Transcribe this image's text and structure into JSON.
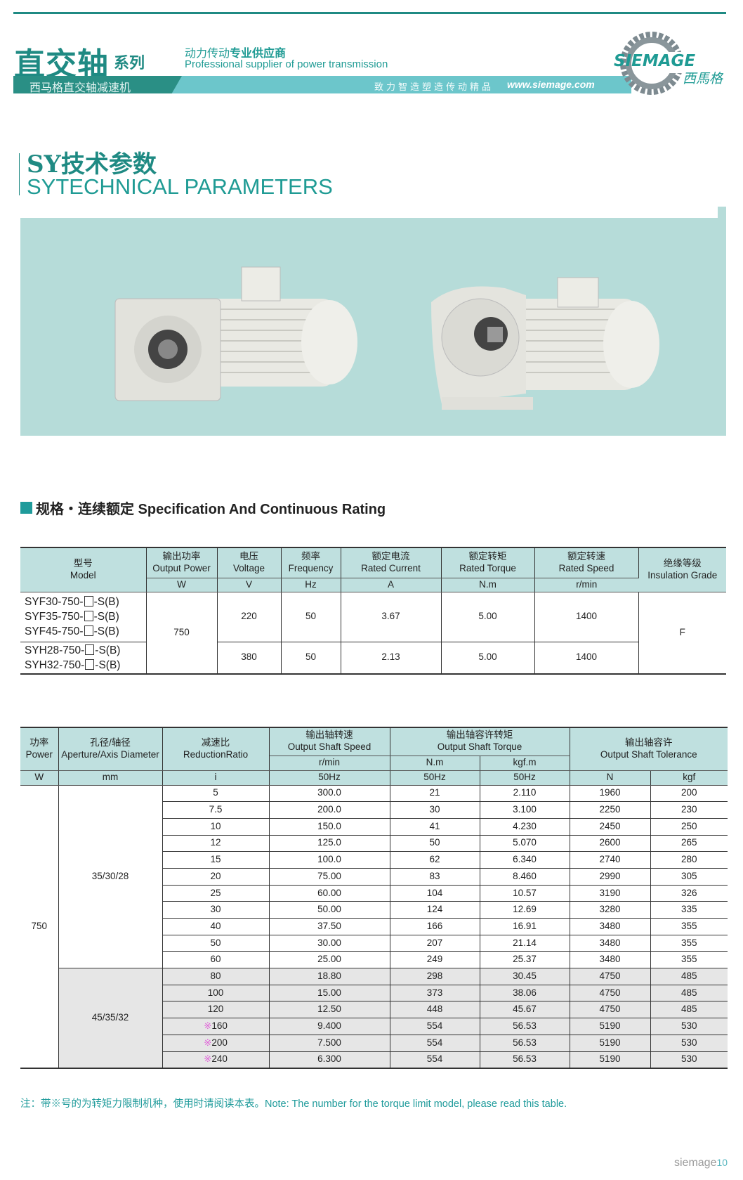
{
  "header": {
    "title": "直交轴",
    "series": "系列",
    "slogan_cn_light": "动力传动",
    "slogan_cn_bold": "专业供应商",
    "slogan_en": "Professional supplier of power transmission",
    "band_left": "西马格直交轴减速机",
    "motto": "致力智造塑造传动精品",
    "url": "www.siemage.com",
    "logo_text": "SIEMAGE",
    "logo_cn": "西馬格"
  },
  "section": {
    "title_cn": "SY技术参数",
    "title_en": "SYTECHNICAL PARAMETERS"
  },
  "spec_heading": "规格・连续额定 Specification And Continuous Rating",
  "table1": {
    "headers": [
      {
        "cn": "型号",
        "en": "Model"
      },
      {
        "cn": "输出功率",
        "en": "Output Power",
        "unit": "W"
      },
      {
        "cn": "电压",
        "en": "Voltage",
        "unit": "V"
      },
      {
        "cn": "频率",
        "en": "Frequency",
        "unit": "Hz"
      },
      {
        "cn": "额定电流",
        "en": "Rated Current",
        "unit": "A"
      },
      {
        "cn": "额定转矩",
        "en": "Rated Torque",
        "unit": "N.m"
      },
      {
        "cn": "额定转速",
        "en": "Rated Speed",
        "unit": "r/min"
      },
      {
        "cn": "绝缘等级",
        "en": "Insulation Grade"
      }
    ],
    "power": "750",
    "insulation": "F",
    "groups": [
      {
        "models": [
          {
            "pre": "SYF30-750-",
            "post": "-S(B)"
          },
          {
            "pre": "SYF35-750-",
            "post": "-S(B)"
          },
          {
            "pre": "SYF45-750-",
            "post": "-S(B)"
          }
        ],
        "voltage": "220",
        "frequency": "50",
        "current": "3.67",
        "torque": "5.00",
        "speed": "1400"
      },
      {
        "models": [
          {
            "pre": "SYH28-750-",
            "post": "-S(B)"
          },
          {
            "pre": "SYH32-750-",
            "post": "-S(B)"
          }
        ],
        "voltage": "380",
        "frequency": "50",
        "current": "2.13",
        "torque": "5.00",
        "speed": "1400"
      }
    ]
  },
  "table2": {
    "headers": {
      "power": {
        "cn": "功率",
        "en": "Power",
        "unit": "W"
      },
      "aperture": {
        "cn": "孔径/轴径",
        "en": "Aperture/Axis Diameter",
        "unit": "mm"
      },
      "ratio": {
        "cn": "减速比",
        "en": "ReductionRatio",
        "unit": "i"
      },
      "speed": {
        "cn": "输出轴转速",
        "en": "Output Shaft Speed",
        "sub": "r/min",
        "unit": "50Hz"
      },
      "torque": {
        "cn": "输出轴容许转矩",
        "en": "Output Shaft Torque",
        "sub1": "N.m",
        "sub2": "kgf.m",
        "unit1": "50Hz",
        "unit2": "50Hz"
      },
      "tolerance": {
        "cn": "输出轴容许",
        "en": "Output Shaft Tolerance",
        "unit1": "N",
        "unit2": "kgf"
      }
    },
    "power": "750",
    "aperture_groups": [
      "35/30/28",
      "45/35/32"
    ],
    "mark_symbol": "※",
    "mark_color": "#e060d8",
    "rows": [
      {
        "i": "5",
        "speed": "300.0",
        "nm": "21",
        "kgfm": "2.110",
        "n": "1960",
        "kgf": "200",
        "group": 0
      },
      {
        "i": "7.5",
        "speed": "200.0",
        "nm": "30",
        "kgfm": "3.100",
        "n": "2250",
        "kgf": "230",
        "group": 0
      },
      {
        "i": "10",
        "speed": "150.0",
        "nm": "41",
        "kgfm": "4.230",
        "n": "2450",
        "kgf": "250",
        "group": 0
      },
      {
        "i": "12",
        "speed": "125.0",
        "nm": "50",
        "kgfm": "5.070",
        "n": "2600",
        "kgf": "265",
        "group": 0
      },
      {
        "i": "15",
        "speed": "100.0",
        "nm": "62",
        "kgfm": "6.340",
        "n": "2740",
        "kgf": "280",
        "group": 0
      },
      {
        "i": "20",
        "speed": "75.00",
        "nm": "83",
        "kgfm": "8.460",
        "n": "2990",
        "kgf": "305",
        "group": 0
      },
      {
        "i": "25",
        "speed": "60.00",
        "nm": "104",
        "kgfm": "10.57",
        "n": "3190",
        "kgf": "326",
        "group": 0
      },
      {
        "i": "30",
        "speed": "50.00",
        "nm": "124",
        "kgfm": "12.69",
        "n": "3280",
        "kgf": "335",
        "group": 0
      },
      {
        "i": "40",
        "speed": "37.50",
        "nm": "166",
        "kgfm": "16.91",
        "n": "3480",
        "kgf": "355",
        "group": 0
      },
      {
        "i": "50",
        "speed": "30.00",
        "nm": "207",
        "kgfm": "21.14",
        "n": "3480",
        "kgf": "355",
        "group": 0
      },
      {
        "i": "60",
        "speed": "25.00",
        "nm": "249",
        "kgfm": "25.37",
        "n": "3480",
        "kgf": "355",
        "group": 0
      },
      {
        "i": "80",
        "speed": "18.80",
        "nm": "298",
        "kgfm": "30.45",
        "n": "4750",
        "kgf": "485",
        "group": 1
      },
      {
        "i": "100",
        "speed": "15.00",
        "nm": "373",
        "kgfm": "38.06",
        "n": "4750",
        "kgf": "485",
        "group": 1
      },
      {
        "i": "120",
        "speed": "12.50",
        "nm": "448",
        "kgfm": "45.67",
        "n": "4750",
        "kgf": "485",
        "group": 1
      },
      {
        "i": "160",
        "speed": "9.400",
        "nm": "554",
        "kgfm": "56.53",
        "n": "5190",
        "kgf": "530",
        "group": 1,
        "marked": true
      },
      {
        "i": "200",
        "speed": "7.500",
        "nm": "554",
        "kgfm": "56.53",
        "n": "5190",
        "kgf": "530",
        "group": 1,
        "marked": true
      },
      {
        "i": "240",
        "speed": "6.300",
        "nm": "554",
        "kgfm": "56.53",
        "n": "5190",
        "kgf": "530",
        "group": 1,
        "marked": true
      }
    ]
  },
  "note": "注：带※号的为转矩力限制机种，使用时请阅读本表。Note: The number for the torque limit model, please read this table.",
  "footer": {
    "brand": "siemage",
    "page": "10"
  },
  "colors": {
    "brand_teal": "#1f8a83",
    "band": "#6cc6cb",
    "table_header": "#bfe0df",
    "photo_bg": "#b6dcd9",
    "gray_row": "#e6e6e6"
  }
}
